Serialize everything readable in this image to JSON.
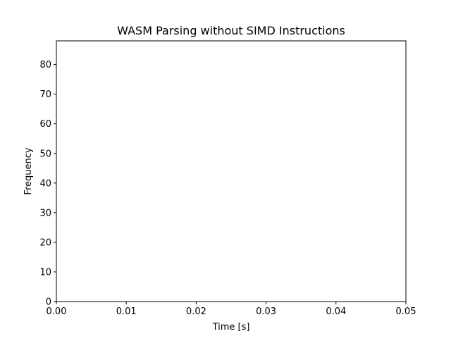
{
  "chart_data": {
    "type": "bar",
    "title": "WASM Parsing without SIMD Instructions",
    "xlabel": "Time [s]",
    "ylabel": "Frequency",
    "xlim": [
      0,
      0.05
    ],
    "ylim": [
      0,
      88
    ],
    "xticks": [
      0,
      0.01,
      0.02,
      0.03,
      0.04,
      0.05
    ],
    "xtick_labels": [
      "0.00",
      "0.01",
      "0.02",
      "0.03",
      "0.04",
      "0.05"
    ],
    "yticks": [
      0,
      10,
      20,
      30,
      40,
      50,
      60,
      70,
      80
    ],
    "ytick_labels": [
      "0",
      "10",
      "20",
      "30",
      "40",
      "50",
      "60",
      "70",
      "80"
    ],
    "grid": false,
    "legend": "none",
    "series": []
  }
}
